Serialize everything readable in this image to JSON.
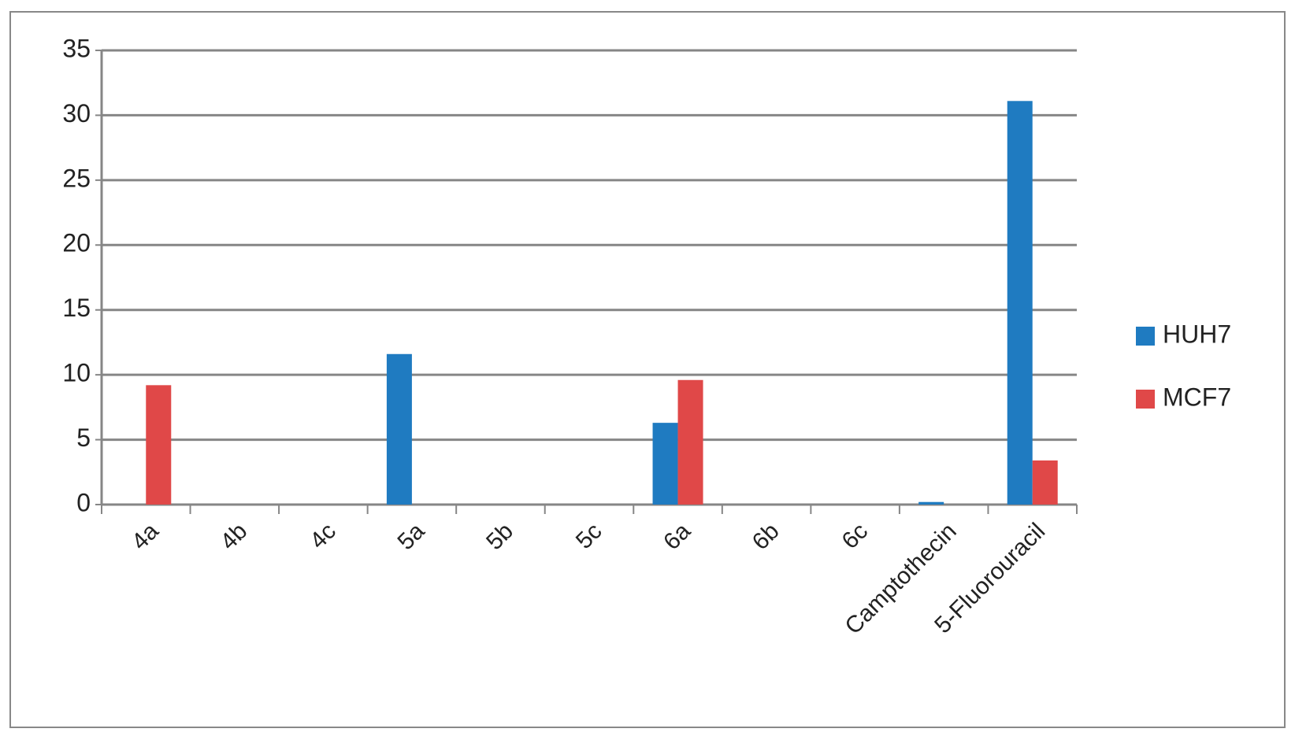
{
  "chart_data": {
    "type": "bar",
    "categories": [
      "4a",
      "4b",
      "4c",
      "5a",
      "5b",
      "5c",
      "6a",
      "6b",
      "6c",
      "Camptothecin",
      "5-Fluorouracil"
    ],
    "series": [
      {
        "name": "HUH7",
        "color": "#1f7bc1",
        "values": [
          0,
          0,
          0,
          11.6,
          0,
          0,
          6.3,
          0,
          0,
          0.2,
          31.1
        ]
      },
      {
        "name": "MCF7",
        "color": "#e04848",
        "values": [
          9.2,
          0,
          0,
          0,
          0,
          0,
          9.6,
          0,
          0,
          0,
          3.4
        ]
      }
    ],
    "ylim": [
      0,
      35
    ],
    "yticks": [
      0,
      5,
      10,
      15,
      20,
      25,
      30,
      35
    ],
    "grid": true,
    "legend": "right"
  }
}
